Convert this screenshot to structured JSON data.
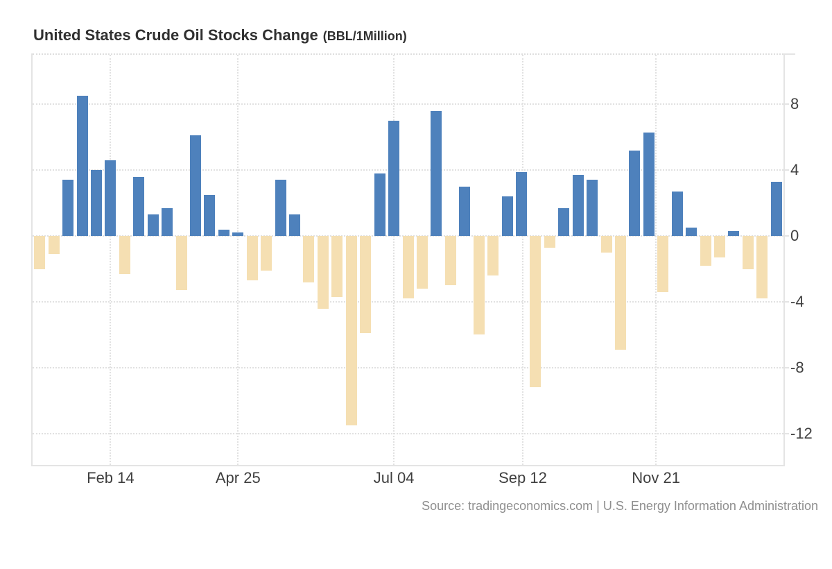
{
  "title": {
    "main": "United States Crude Oil Stocks Change",
    "unit": "(BBL/1Million)"
  },
  "source_line": "Source: tradingeconomics.com | U.S. Energy Information Administration",
  "colors": {
    "positive_bar": "#4e81bc",
    "negative_bar": "#f5dfb2",
    "gridline": "#e1e1e1",
    "axis_text": "#3f3f3f",
    "title_text": "#303030",
    "source_text": "#8f8f8f",
    "background": "#ffffff"
  },
  "chart_data": {
    "type": "bar",
    "title": "United States Crude Oil Stocks Change (BBL/1Million)",
    "xlabel": "",
    "ylabel": "",
    "ylim": [
      -13.9,
      11
    ],
    "yticks": [
      8,
      4,
      0,
      -4,
      -8,
      -12
    ],
    "grid": true,
    "legend": false,
    "xticks": [
      {
        "label": "Feb 14",
        "bar_index": 5
      },
      {
        "label": "Apr 25",
        "bar_index": 14
      },
      {
        "label": "Jul 04",
        "bar_index": 25
      },
      {
        "label": "Sep 12",
        "bar_index": 34.1
      },
      {
        "label": "Nov 21",
        "bar_index": 43.5
      }
    ],
    "values": [
      -2.0,
      -1.1,
      3.4,
      8.5,
      4.0,
      4.6,
      -2.3,
      3.6,
      1.3,
      1.7,
      -3.3,
      6.1,
      2.5,
      0.4,
      0.2,
      -2.7,
      -2.1,
      3.4,
      1.3,
      -2.8,
      -4.4,
      -3.7,
      -11.5,
      -5.9,
      3.8,
      7.0,
      -3.8,
      -3.2,
      7.6,
      -3.0,
      3.0,
      -6.0,
      -2.4,
      2.4,
      3.9,
      -9.2,
      -0.7,
      1.7,
      3.7,
      3.4,
      -1.0,
      -6.9,
      5.2,
      6.3,
      -3.4,
      2.7,
      0.5,
      -1.8,
      -1.3,
      0.3,
      -2.0,
      -3.8,
      3.3
    ]
  }
}
